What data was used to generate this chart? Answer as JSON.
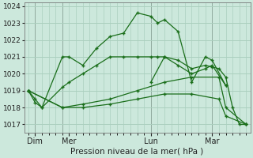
{
  "background_color": "#cce8dc",
  "grid_color": "#aacfbe",
  "line_color": "#1a6e1a",
  "xlabel": "Pression niveau de la mer( hPa )",
  "ylim": [
    1016.5,
    1024.2
  ],
  "xlim": [
    -0.3,
    16.3
  ],
  "yticks": [
    1017,
    1018,
    1019,
    1020,
    1021,
    1022,
    1023,
    1024
  ],
  "day_labels": [
    "Dim",
    "Mer",
    "Lun",
    "Mar"
  ],
  "day_positions": [
    0.5,
    3.0,
    9.0,
    13.5
  ],
  "vline_positions": [
    0.5,
    2.5,
    9.0,
    13.5
  ],
  "lines": [
    {
      "x": [
        0.0,
        0.5,
        1.0,
        2.5,
        3.0,
        4.0,
        5.0,
        6.0,
        7.0,
        8.0,
        9.0,
        9.5,
        10.0,
        11.0,
        12.0,
        13.0,
        13.5,
        14.5
      ],
      "y": [
        1019.0,
        1018.3,
        1018.0,
        1021.0,
        1021.0,
        1020.5,
        1021.5,
        1022.2,
        1022.4,
        1023.6,
        1023.4,
        1023.0,
        1023.2,
        1022.5,
        1019.5,
        1021.0,
        1020.8,
        1019.3
      ]
    },
    {
      "x": [
        0.0,
        0.5,
        1.0,
        2.5,
        3.0,
        4.0,
        5.0,
        6.0,
        7.0,
        8.0,
        9.0,
        9.5,
        10.0,
        11.0,
        12.0,
        13.0,
        13.5,
        14.5
      ],
      "y": [
        1019.0,
        1018.5,
        1018.0,
        1019.2,
        1019.5,
        1020.0,
        1020.5,
        1021.0,
        1021.0,
        1021.0,
        1021.0,
        1021.0,
        1021.0,
        1020.5,
        1020.0,
        1020.3,
        1020.5,
        1019.3
      ]
    },
    {
      "x": [
        0.0,
        2.5,
        4.0,
        6.0,
        8.0,
        10.0,
        12.0,
        14.0,
        14.5,
        16.0
      ],
      "y": [
        1019.0,
        1018.0,
        1018.2,
        1018.5,
        1019.0,
        1019.5,
        1019.8,
        1019.8,
        1018.0,
        1017.0
      ]
    },
    {
      "x": [
        0.0,
        2.5,
        4.0,
        6.0,
        8.0,
        10.0,
        12.0,
        14.0,
        14.5,
        16.0
      ],
      "y": [
        1019.0,
        1018.0,
        1018.0,
        1018.2,
        1018.5,
        1018.8,
        1018.8,
        1018.5,
        1017.5,
        1017.0
      ]
    },
    {
      "x": [
        9.0,
        10.0,
        11.0,
        12.0,
        13.0,
        13.5,
        14.0,
        14.5,
        15.0,
        15.5,
        16.0
      ],
      "y": [
        1019.5,
        1021.0,
        1020.8,
        1020.3,
        1020.5,
        1020.4,
        1020.3,
        1019.8,
        1018.0,
        1017.0,
        1017.0
      ]
    }
  ]
}
